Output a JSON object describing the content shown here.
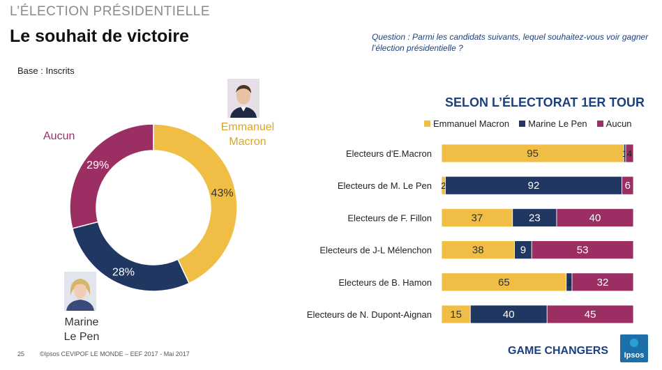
{
  "header": {
    "supertitle": "L’ÉLECTION PRÉSIDENTIELLE",
    "title": "Le souhait de victoire",
    "question": "Question : Parmi les candidats suivants, lequel souhaitez-vous voir gagner l’élection présidentielle ?",
    "base": "Base : Inscrits"
  },
  "colors": {
    "macron": "#f0bd45",
    "lepen": "#1f3761",
    "aucun": "#9b2f63"
  },
  "chart_data": [
    {
      "type": "pie",
      "title": "",
      "slices": [
        {
          "name": "Emmanuel Macron",
          "value": 43,
          "label": "43%"
        },
        {
          "name": "Marine Le Pen",
          "value": 28,
          "label": "28%"
        },
        {
          "name": "Aucun",
          "value": 29,
          "label": "29%"
        }
      ],
      "outer_labels": {
        "macron": [
          "Emmanuel",
          "Macron"
        ],
        "lepen": [
          "Marine",
          "Le Pen"
        ],
        "aucun": "Aucun"
      }
    },
    {
      "type": "bar",
      "orientation": "horizontal",
      "stacked": true,
      "title": "SELON L’ÉLECTORAT 1ER TOUR",
      "legend_position": "top",
      "categories": [
        "Electeurs d'E.Macron",
        "Electeurs de M. Le Pen",
        "Electeurs de F. Fillon",
        "Electeurs de J-L Mélenchon",
        "Electeurs de B. Hamon",
        "Electeurs de N. Dupont-Aignan"
      ],
      "series": [
        {
          "name": "Emmanuel Macron",
          "values": [
            95,
            2,
            37,
            38,
            65,
            15
          ]
        },
        {
          "name": "Marine Le Pen",
          "values": [
            1,
            92,
            23,
            9,
            3,
            40
          ]
        },
        {
          "name": "Aucun",
          "values": [
            4,
            6,
            40,
            53,
            32,
            45
          ]
        }
      ],
      "xlim": [
        0,
        100
      ]
    }
  ],
  "footer": {
    "page": "25",
    "source": "©Ipsos  CEVIPOF LE MONDE – EEF 2017 -  Mai 2017",
    "brand": "GAME CHANGERS",
    "logo_text": "Ipsos"
  }
}
